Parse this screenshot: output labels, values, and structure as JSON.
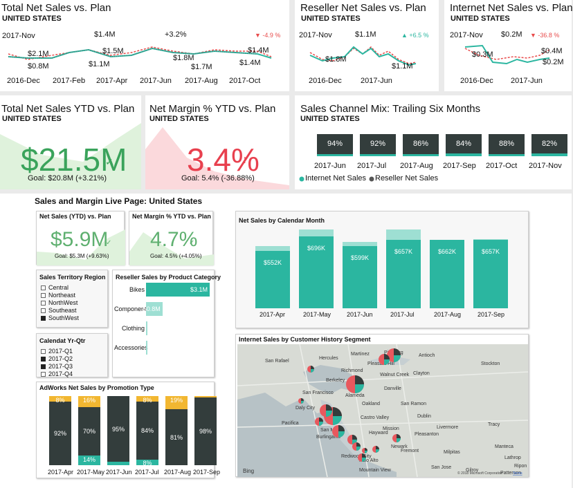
{
  "top_tiles": {
    "total_net_sales": {
      "title": "Total Net Sales vs. Plan",
      "subtitle": "UNITED STATES",
      "current_month": "2017-Nov",
      "current_value": "$1.4M",
      "change": "+3.2%",
      "change_red": "▼ -4.9 %",
      "point_labels": [
        "$2.1M",
        "$0.8M",
        "$1.1M",
        "$1.5M",
        "$1.8M",
        "$1.7M",
        "$1.4M",
        "$1.4M"
      ],
      "x_labels": [
        "2016-Dec",
        "2017-Feb",
        "2017-Apr",
        "2017-Jun",
        "2017-Aug",
        "2017-Oct"
      ]
    },
    "reseller_net_sales": {
      "title": "Reseller Net Sales vs. Plan",
      "subtitle": "UNITED STATES",
      "current_month": "2017-Nov",
      "current_value": "$1.1M",
      "change_green": "▲ +6.5 %",
      "point_labels": [
        "$1.8M",
        "$1.1M"
      ],
      "x_labels": [
        "2016-Dec",
        "2017-Jun"
      ]
    },
    "internet_net_sales": {
      "title": "Internet Net Sales vs. Plan",
      "subtitle": "UNITED STATES",
      "current_month": "2017-Nov",
      "current_value": "$0.2M",
      "change_red": "▼ -36.8 %",
      "point_labels": [
        "$0.3M",
        "$0.4M",
        "$0.2M"
      ],
      "x_labels": [
        "2016-Dec",
        "2017-Jun"
      ]
    },
    "total_ytd": {
      "title": "Total Net Sales YTD vs. Plan",
      "subtitle": "UNITED STATES",
      "value": "$21.5M",
      "check": "✓",
      "goal": "Goal: $20.8M (+3.21%)"
    },
    "margin_ytd": {
      "title": "Net Margin % YTD vs. Plan",
      "subtitle": "UNITED STATES",
      "value": "3.4%",
      "bang": "!",
      "goal": "Goal: 5.4% (-36.88%)"
    },
    "channel_mix": {
      "title": "Sales Channel Mix: Trailing Six Months",
      "subtitle": "UNITED STATES",
      "months": [
        "2017-Jun",
        "2017-Jul",
        "2017-Aug",
        "2017-Sep",
        "2017-Oct",
        "2017-Nov"
      ],
      "percents": [
        "94%",
        "92%",
        "86%",
        "84%",
        "88%",
        "82%"
      ],
      "legend_internet": "Internet Net Sales",
      "legend_reseller": "Reseller Net Sales",
      "colors": {
        "internet": "#2bb6a0",
        "reseller": "#555555"
      }
    }
  },
  "live_page": {
    "title": "Sales and Margin Live Page: United States",
    "net_sales_ytd": {
      "title": "Net Sales (YTD) vs. Plan",
      "value": "$5.9M",
      "check": "✓",
      "goal": "Goal: $5.3M (+9.63%)"
    },
    "net_margin_ytd": {
      "title": "Net Margin % YTD vs. Plan",
      "value": "4.7%",
      "check": "✓",
      "goal": "Goal: 4.5% (+4.05%)"
    },
    "territory_slicer": {
      "title": "Sales Territory Region",
      "items": [
        {
          "label": "Central",
          "checked": false
        },
        {
          "label": "Northeast",
          "checked": false
        },
        {
          "label": "NorthWest",
          "checked": false
        },
        {
          "label": "Southeast",
          "checked": false
        },
        {
          "label": "SouthWest",
          "checked": true
        }
      ]
    },
    "quarter_slicer": {
      "title": "Calendat Yr-Qtr",
      "items": [
        {
          "label": "2017-Q1",
          "checked": false
        },
        {
          "label": "2017-Q2",
          "checked": true
        },
        {
          "label": "2017-Q3",
          "checked": true
        },
        {
          "label": "2017-Q4",
          "checked": false
        }
      ]
    },
    "reseller_by_category": {
      "title": "Reseller Sales by Product Category",
      "categories": [
        "Bikes",
        "Components",
        "Clothing",
        "Accessories"
      ],
      "values": [
        3.1,
        0.8,
        0.05,
        0.02
      ],
      "value_labels": [
        "$3.1M",
        "$0.8M",
        "",
        ""
      ],
      "max": 3.1
    },
    "by_calendar_month": {
      "title": "Net Sales by Calendar Month",
      "months": [
        "2017-Apr",
        "2017-May",
        "2017-Jun",
        "2017-Jul",
        "2017-Aug",
        "2017-Sep"
      ],
      "values": [
        552,
        696,
        599,
        657,
        662,
        657
      ],
      "plan": [
        600,
        760,
        640,
        760,
        660,
        665
      ],
      "value_labels": [
        "$552K",
        "$696K",
        "$599K",
        "$657K",
        "$662K",
        "$657K"
      ],
      "ymax": 800
    },
    "promotion_type": {
      "title": "AdWorks Net Sales by Promotion Type",
      "months": [
        "2017-Apr",
        "2017-May",
        "2017-Jun",
        "2017-Jul",
        "2017-Aug",
        "2017-Sep"
      ],
      "top": [
        8,
        16,
        0,
        8,
        19,
        2
      ],
      "mid": [
        92,
        70,
        95,
        84,
        81,
        98
      ],
      "bottom": [
        0,
        14,
        5,
        8,
        0,
        0
      ],
      "top_labels": [
        "8%",
        "16%",
        "",
        "8%",
        "19%",
        ""
      ],
      "mid_labels": [
        "92%",
        "70%",
        "95%",
        "84%",
        "81%",
        "98%"
      ],
      "bottom_labels": [
        "",
        "14%",
        "",
        "8%",
        "",
        ""
      ],
      "colors": {
        "top": "#f2b731",
        "mid": "#333d3c",
        "bottom": "#2bb6a0"
      }
    },
    "map": {
      "title": "Internet Sales by Customer History Segment",
      "places": [
        "San Rafael",
        "Hercules",
        "Martinez",
        "Pittsburg",
        "Antioch",
        "Pleasant Hill",
        "Richmond",
        "Walnut Creek",
        "Clayton",
        "Berkeley",
        "Danville",
        "San Francisco",
        "Alameda",
        "San Ramon",
        "Daly City",
        "Oakland",
        "Castro Valley",
        "Dublin",
        "Tracy",
        "Stockton",
        "Pacifica",
        "San Mateo",
        "Hayward",
        "Pleasanton",
        "Livermore",
        "Burlingame",
        "Fremont",
        "Redwood City",
        "Palo Alto",
        "Newark",
        "Milpitas",
        "Mountain View",
        "San Jose",
        "Manteca",
        "Lathrop",
        "Ripon",
        "Patterson",
        "Mission",
        "Gilroy"
      ],
      "bing": "Bing",
      "copyright": "© 2018 Microsoft Corporation",
      "terms": "Terms"
    }
  }
}
